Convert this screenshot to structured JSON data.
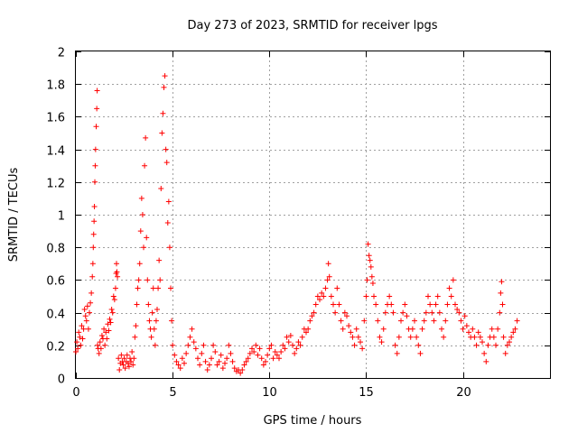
{
  "chart_data": {
    "type": "scatter",
    "title": "Day 273 of 2023, SRMTID for receiver lpgs",
    "xlabel": "GPS time / hours",
    "ylabel": "SRMTID / TECUs",
    "xlim": [
      0,
      24.5
    ],
    "ylim": [
      0,
      2
    ],
    "x_ticks": [
      0,
      5,
      10,
      15,
      20
    ],
    "x_tick_labels": [
      "0",
      "5",
      "10",
      "15",
      "20"
    ],
    "y_ticks": [
      0,
      0.2,
      0.4,
      0.6,
      0.8,
      1,
      1.2,
      1.4,
      1.6,
      1.8,
      2
    ],
    "y_tick_labels": [
      "0",
      "0.2",
      "0.4",
      "0.6",
      "0.8",
      "1",
      "1.2",
      "1.4",
      "1.6",
      "1.8",
      "2"
    ],
    "grid": true,
    "marker": "+",
    "marker_color": "#ff0000",
    "series": [
      {
        "name": "SRMTID",
        "points": [
          [
            0.0,
            0.16
          ],
          [
            0.05,
            0.22
          ],
          [
            0.1,
            0.18
          ],
          [
            0.15,
            0.28
          ],
          [
            0.2,
            0.25
          ],
          [
            0.25,
            0.2
          ],
          [
            0.3,
            0.32
          ],
          [
            0.35,
            0.24
          ],
          [
            0.4,
            0.3
          ],
          [
            0.45,
            0.42
          ],
          [
            0.5,
            0.38
          ],
          [
            0.55,
            0.35
          ],
          [
            0.6,
            0.44
          ],
          [
            0.65,
            0.3
          ],
          [
            0.7,
            0.4
          ],
          [
            0.75,
            0.46
          ],
          [
            0.8,
            0.52
          ],
          [
            0.85,
            0.62
          ],
          [
            0.88,
            0.7
          ],
          [
            0.9,
            0.8
          ],
          [
            0.92,
            0.88
          ],
          [
            0.94,
            0.96
          ],
          [
            0.96,
            1.05
          ],
          [
            0.98,
            1.2
          ],
          [
            1.0,
            1.3
          ],
          [
            1.02,
            1.4
          ],
          [
            1.05,
            1.54
          ],
          [
            1.08,
            1.65
          ],
          [
            1.1,
            1.76
          ],
          [
            1.12,
            0.2
          ],
          [
            1.15,
            0.18
          ],
          [
            1.2,
            0.15
          ],
          [
            1.25,
            0.22
          ],
          [
            1.3,
            0.18
          ],
          [
            1.35,
            0.26
          ],
          [
            1.4,
            0.24
          ],
          [
            1.45,
            0.3
          ],
          [
            1.5,
            0.2
          ],
          [
            1.55,
            0.28
          ],
          [
            1.6,
            0.24
          ],
          [
            1.65,
            0.33
          ],
          [
            1.7,
            0.29
          ],
          [
            1.75,
            0.36
          ],
          [
            1.8,
            0.34
          ],
          [
            1.85,
            0.42
          ],
          [
            1.9,
            0.4
          ],
          [
            1.95,
            0.5
          ],
          [
            2.0,
            0.48
          ],
          [
            2.05,
            0.55
          ],
          [
            2.08,
            0.64
          ],
          [
            2.1,
            0.7
          ],
          [
            2.12,
            0.65
          ],
          [
            2.15,
            0.62
          ],
          [
            2.2,
            0.12
          ],
          [
            2.25,
            0.05
          ],
          [
            2.3,
            0.09
          ],
          [
            2.35,
            0.14
          ],
          [
            2.4,
            0.1
          ],
          [
            2.45,
            0.08
          ],
          [
            2.5,
            0.12
          ],
          [
            2.55,
            0.06
          ],
          [
            2.6,
            0.1
          ],
          [
            2.65,
            0.14
          ],
          [
            2.7,
            0.09
          ],
          [
            2.75,
            0.07
          ],
          [
            2.8,
            0.12
          ],
          [
            2.85,
            0.1
          ],
          [
            2.9,
            0.16
          ],
          [
            2.95,
            0.08
          ],
          [
            3.0,
            0.12
          ],
          [
            3.05,
            0.25
          ],
          [
            3.1,
            0.32
          ],
          [
            3.15,
            0.45
          ],
          [
            3.2,
            0.55
          ],
          [
            3.25,
            0.6
          ],
          [
            3.3,
            0.7
          ],
          [
            3.35,
            0.9
          ],
          [
            3.4,
            1.1
          ],
          [
            3.45,
            1.0
          ],
          [
            3.5,
            0.8
          ],
          [
            3.55,
            1.3
          ],
          [
            3.6,
            1.47
          ],
          [
            3.65,
            0.86
          ],
          [
            3.7,
            0.6
          ],
          [
            3.75,
            0.45
          ],
          [
            3.8,
            0.35
          ],
          [
            3.85,
            0.3
          ],
          [
            3.9,
            0.25
          ],
          [
            3.95,
            0.4
          ],
          [
            4.0,
            0.55
          ],
          [
            4.05,
            0.3
          ],
          [
            4.1,
            0.2
          ],
          [
            4.15,
            0.35
          ],
          [
            4.2,
            0.42
          ],
          [
            4.25,
            0.55
          ],
          [
            4.3,
            0.72
          ],
          [
            4.35,
            0.6
          ],
          [
            4.4,
            1.16
          ],
          [
            4.45,
            1.5
          ],
          [
            4.5,
            1.62
          ],
          [
            4.55,
            1.78
          ],
          [
            4.6,
            1.85
          ],
          [
            4.65,
            1.4
          ],
          [
            4.7,
            1.32
          ],
          [
            4.75,
            0.95
          ],
          [
            4.8,
            1.08
          ],
          [
            4.85,
            0.8
          ],
          [
            4.9,
            0.55
          ],
          [
            4.95,
            0.35
          ],
          [
            5.0,
            0.2
          ],
          [
            5.1,
            0.14
          ],
          [
            5.2,
            0.1
          ],
          [
            5.3,
            0.08
          ],
          [
            5.4,
            0.06
          ],
          [
            5.5,
            0.12
          ],
          [
            5.6,
            0.09
          ],
          [
            5.7,
            0.15
          ],
          [
            5.8,
            0.2
          ],
          [
            5.9,
            0.25
          ],
          [
            6.0,
            0.3
          ],
          [
            6.1,
            0.22
          ],
          [
            6.2,
            0.18
          ],
          [
            6.3,
            0.12
          ],
          [
            6.4,
            0.08
          ],
          [
            6.5,
            0.15
          ],
          [
            6.6,
            0.2
          ],
          [
            6.7,
            0.1
          ],
          [
            6.8,
            0.05
          ],
          [
            6.9,
            0.08
          ],
          [
            7.0,
            0.12
          ],
          [
            7.1,
            0.2
          ],
          [
            7.2,
            0.16
          ],
          [
            7.3,
            0.08
          ],
          [
            7.4,
            0.1
          ],
          [
            7.5,
            0.14
          ],
          [
            7.6,
            0.06
          ],
          [
            7.7,
            0.09
          ],
          [
            7.8,
            0.12
          ],
          [
            7.9,
            0.2
          ],
          [
            8.0,
            0.15
          ],
          [
            8.1,
            0.1
          ],
          [
            8.2,
            0.06
          ],
          [
            8.3,
            0.04
          ],
          [
            8.4,
            0.05
          ],
          [
            8.5,
            0.03
          ],
          [
            8.6,
            0.05
          ],
          [
            8.7,
            0.08
          ],
          [
            8.8,
            0.1
          ],
          [
            8.9,
            0.12
          ],
          [
            9.0,
            0.15
          ],
          [
            9.1,
            0.18
          ],
          [
            9.2,
            0.16
          ],
          [
            9.3,
            0.2
          ],
          [
            9.4,
            0.14
          ],
          [
            9.5,
            0.18
          ],
          [
            9.6,
            0.12
          ],
          [
            9.7,
            0.08
          ],
          [
            9.8,
            0.1
          ],
          [
            9.9,
            0.14
          ],
          [
            10.0,
            0.18
          ],
          [
            10.1,
            0.2
          ],
          [
            10.2,
            0.12
          ],
          [
            10.3,
            0.16
          ],
          [
            10.4,
            0.14
          ],
          [
            10.5,
            0.12
          ],
          [
            10.6,
            0.16
          ],
          [
            10.7,
            0.2
          ],
          [
            10.8,
            0.18
          ],
          [
            10.9,
            0.25
          ],
          [
            11.0,
            0.22
          ],
          [
            11.1,
            0.26
          ],
          [
            11.2,
            0.2
          ],
          [
            11.3,
            0.15
          ],
          [
            11.4,
            0.18
          ],
          [
            11.5,
            0.22
          ],
          [
            11.6,
            0.2
          ],
          [
            11.7,
            0.25
          ],
          [
            11.8,
            0.3
          ],
          [
            11.9,
            0.28
          ],
          [
            12.0,
            0.3
          ],
          [
            12.1,
            0.35
          ],
          [
            12.2,
            0.38
          ],
          [
            12.3,
            0.4
          ],
          [
            12.4,
            0.45
          ],
          [
            12.5,
            0.5
          ],
          [
            12.6,
            0.48
          ],
          [
            12.7,
            0.52
          ],
          [
            12.8,
            0.5
          ],
          [
            12.9,
            0.55
          ],
          [
            13.0,
            0.6
          ],
          [
            13.05,
            0.7
          ],
          [
            13.1,
            0.62
          ],
          [
            13.2,
            0.5
          ],
          [
            13.3,
            0.45
          ],
          [
            13.4,
            0.4
          ],
          [
            13.5,
            0.55
          ],
          [
            13.6,
            0.45
          ],
          [
            13.7,
            0.35
          ],
          [
            13.8,
            0.3
          ],
          [
            13.9,
            0.4
          ],
          [
            14.0,
            0.38
          ],
          [
            14.1,
            0.32
          ],
          [
            14.2,
            0.28
          ],
          [
            14.3,
            0.25
          ],
          [
            14.4,
            0.2
          ],
          [
            14.5,
            0.3
          ],
          [
            14.6,
            0.25
          ],
          [
            14.7,
            0.22
          ],
          [
            14.8,
            0.18
          ],
          [
            14.9,
            0.35
          ],
          [
            15.0,
            0.5
          ],
          [
            15.05,
            0.6
          ],
          [
            15.1,
            0.82
          ],
          [
            15.15,
            0.75
          ],
          [
            15.2,
            0.72
          ],
          [
            15.25,
            0.68
          ],
          [
            15.3,
            0.62
          ],
          [
            15.35,
            0.58
          ],
          [
            15.4,
            0.5
          ],
          [
            15.5,
            0.45
          ],
          [
            15.6,
            0.35
          ],
          [
            15.7,
            0.25
          ],
          [
            15.8,
            0.22
          ],
          [
            15.9,
            0.3
          ],
          [
            16.0,
            0.4
          ],
          [
            16.1,
            0.45
          ],
          [
            16.2,
            0.5
          ],
          [
            16.3,
            0.45
          ],
          [
            16.4,
            0.4
          ],
          [
            16.5,
            0.2
          ],
          [
            16.6,
            0.15
          ],
          [
            16.7,
            0.25
          ],
          [
            16.8,
            0.35
          ],
          [
            16.9,
            0.4
          ],
          [
            17.0,
            0.45
          ],
          [
            17.1,
            0.38
          ],
          [
            17.2,
            0.3
          ],
          [
            17.3,
            0.25
          ],
          [
            17.4,
            0.3
          ],
          [
            17.5,
            0.35
          ],
          [
            17.6,
            0.25
          ],
          [
            17.7,
            0.2
          ],
          [
            17.8,
            0.15
          ],
          [
            17.9,
            0.3
          ],
          [
            18.0,
            0.35
          ],
          [
            18.1,
            0.4
          ],
          [
            18.2,
            0.5
          ],
          [
            18.3,
            0.45
          ],
          [
            18.4,
            0.4
          ],
          [
            18.5,
            0.35
          ],
          [
            18.6,
            0.45
          ],
          [
            18.7,
            0.5
          ],
          [
            18.8,
            0.4
          ],
          [
            18.9,
            0.3
          ],
          [
            19.0,
            0.25
          ],
          [
            19.1,
            0.35
          ],
          [
            19.2,
            0.45
          ],
          [
            19.3,
            0.55
          ],
          [
            19.4,
            0.5
          ],
          [
            19.5,
            0.6
          ],
          [
            19.6,
            0.45
          ],
          [
            19.7,
            0.42
          ],
          [
            19.8,
            0.4
          ],
          [
            19.9,
            0.35
          ],
          [
            20.0,
            0.3
          ],
          [
            20.1,
            0.38
          ],
          [
            20.2,
            0.32
          ],
          [
            20.3,
            0.28
          ],
          [
            20.4,
            0.25
          ],
          [
            20.5,
            0.3
          ],
          [
            20.6,
            0.25
          ],
          [
            20.7,
            0.2
          ],
          [
            20.8,
            0.28
          ],
          [
            20.9,
            0.25
          ],
          [
            21.0,
            0.22
          ],
          [
            21.1,
            0.15
          ],
          [
            21.2,
            0.1
          ],
          [
            21.3,
            0.2
          ],
          [
            21.4,
            0.25
          ],
          [
            21.5,
            0.3
          ],
          [
            21.6,
            0.25
          ],
          [
            21.7,
            0.2
          ],
          [
            21.8,
            0.3
          ],
          [
            21.9,
            0.4
          ],
          [
            21.95,
            0.52
          ],
          [
            22.0,
            0.59
          ],
          [
            22.05,
            0.45
          ],
          [
            22.1,
            0.25
          ],
          [
            22.2,
            0.15
          ],
          [
            22.3,
            0.2
          ],
          [
            22.4,
            0.22
          ],
          [
            22.5,
            0.25
          ],
          [
            22.6,
            0.28
          ],
          [
            22.7,
            0.3
          ],
          [
            22.8,
            0.35
          ]
        ]
      }
    ]
  }
}
